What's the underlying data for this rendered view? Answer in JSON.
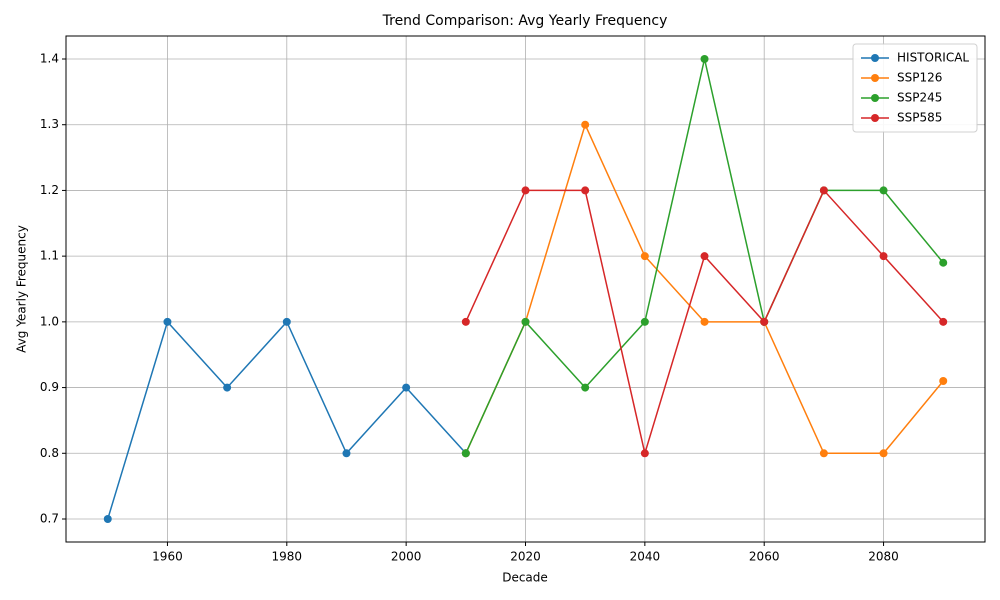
{
  "chart_data": {
    "type": "line",
    "title": "Trend Comparison: Avg Yearly Frequency",
    "x_label": "Decade",
    "y_label": "Avg Yearly Frequency",
    "x": [
      1950,
      1960,
      1970,
      1980,
      1990,
      2000,
      2010,
      2020,
      2030,
      2040,
      2050,
      2060,
      2070,
      2080,
      2090
    ],
    "series": [
      {
        "name": "HISTORICAL",
        "color": "#1f77b4",
        "values": [
          0.7,
          1.0,
          0.9,
          1.0,
          0.8,
          0.9,
          0.8,
          null,
          null,
          null,
          null,
          null,
          null,
          null,
          null
        ]
      },
      {
        "name": "SSP126",
        "color": "#ff7f0e",
        "values": [
          null,
          null,
          null,
          null,
          null,
          null,
          0.8,
          1.0,
          1.3,
          1.1,
          1.0,
          1.0,
          0.8,
          0.8,
          0.91
        ]
      },
      {
        "name": "SSP245",
        "color": "#2ca02c",
        "values": [
          null,
          null,
          null,
          null,
          null,
          null,
          0.8,
          1.0,
          0.9,
          1.0,
          1.4,
          1.0,
          1.2,
          1.2,
          1.09
        ]
      },
      {
        "name": "SSP585",
        "color": "#d62728",
        "values": [
          null,
          null,
          null,
          null,
          null,
          null,
          1.0,
          1.2,
          1.2,
          0.8,
          1.1,
          1.0,
          1.2,
          1.1,
          1.0
        ]
      }
    ],
    "xlim": [
      1943,
      2097
    ],
    "xticks": [
      1960,
      1980,
      2000,
      2020,
      2040,
      2060,
      2080
    ],
    "ylim": [
      0.665,
      1.435
    ],
    "yticks": [
      0.7,
      0.8,
      0.9,
      {
        "value": 1,
        "label": "1.0"
      },
      1.1,
      1.2,
      1.3,
      1.4
    ],
    "grid": true,
    "legend": "upper-right"
  }
}
